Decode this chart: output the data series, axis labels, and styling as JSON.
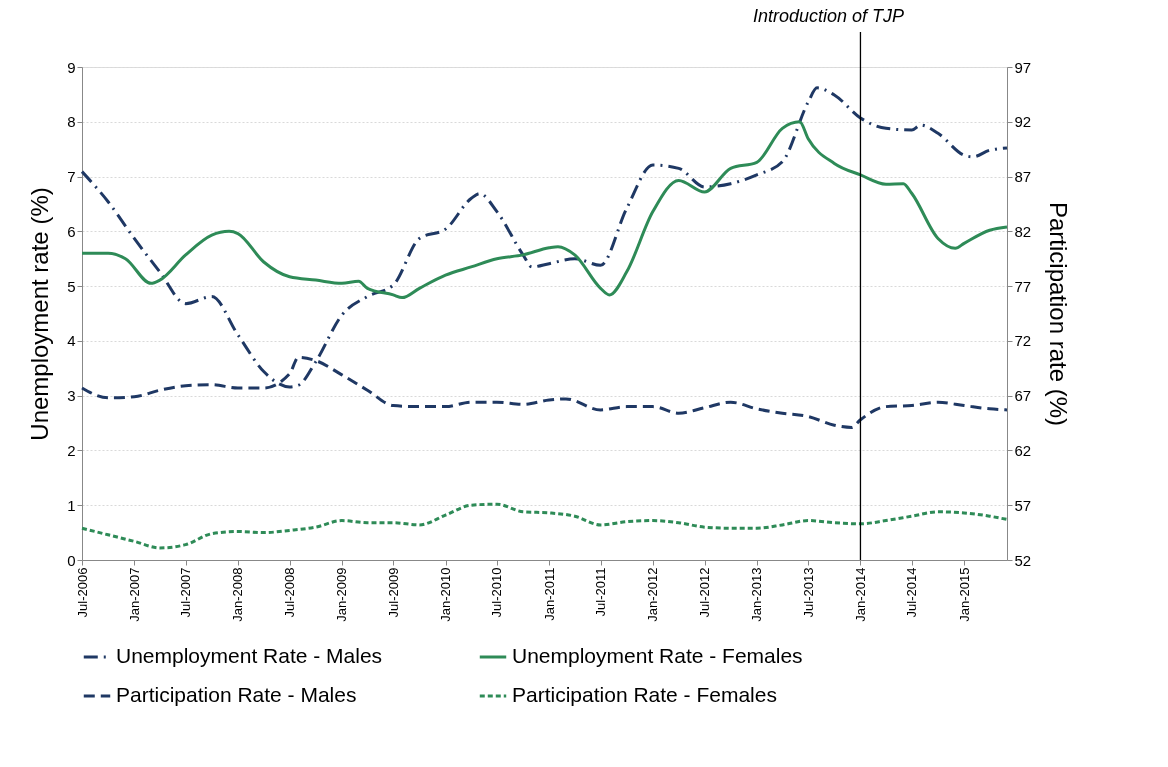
{
  "chart_data": {
    "type": "line",
    "ylabel": "Unemployment rate (%)",
    "y2label": "Participation rate (%)",
    "xlim": [
      "2006-07",
      "2015-06"
    ],
    "xticks": [
      {
        "value": "2006-07",
        "label": "Jul-2006"
      },
      {
        "value": "2007-01",
        "label": "Jan-2007"
      },
      {
        "value": "2007-07",
        "label": "Jul-2007"
      },
      {
        "value": "2008-01",
        "label": "Jan-2008"
      },
      {
        "value": "2008-07",
        "label": "Jul-2008"
      },
      {
        "value": "2009-01",
        "label": "Jan-2009"
      },
      {
        "value": "2009-07",
        "label": "Jul-2009"
      },
      {
        "value": "2010-01",
        "label": "Jan-2010"
      },
      {
        "value": "2010-07",
        "label": "Jul-2010"
      },
      {
        "value": "2011-01",
        "label": "Jan-2011"
      },
      {
        "value": "2011-07",
        "label": "Jul-2011"
      },
      {
        "value": "2012-01",
        "label": "Jan-2012"
      },
      {
        "value": "2012-07",
        "label": "Jul-2012"
      },
      {
        "value": "2013-01",
        "label": "Jan-2013"
      },
      {
        "value": "2013-07",
        "label": "Jul-2013"
      },
      {
        "value": "2014-01",
        "label": "Jan-2014"
      },
      {
        "value": "2014-07",
        "label": "Jul-2014"
      },
      {
        "value": "2015-01",
        "label": "Jan-2015"
      }
    ],
    "ylim": [
      0,
      9
    ],
    "yticks": [
      0,
      1,
      2,
      3,
      4,
      5,
      6,
      7,
      8,
      9
    ],
    "y2lim": [
      52,
      97
    ],
    "y2ticks": [
      52,
      57,
      62,
      67,
      72,
      77,
      82,
      87,
      92,
      97
    ],
    "grid": "y",
    "legend": "bottom",
    "marker": "none",
    "ref_lines": [
      {
        "axis": "x",
        "value": "2014-01",
        "label": "Introduction of TJP",
        "color": "#000000"
      }
    ],
    "series": [
      {
        "name": "Unemployment Rate - Males",
        "color": "#1f3864",
        "line_style": "dashdot",
        "x": [
          "2006-07",
          "2006-10",
          "2007-01",
          "2007-04",
          "2007-07",
          "2007-10",
          "2008-01",
          "2008-04",
          "2008-07",
          "2008-08",
          "2008-10",
          "2009-01",
          "2009-04",
          "2009-07",
          "2009-10",
          "2010-01",
          "2010-04",
          "2010-05",
          "2010-07",
          "2010-10",
          "2010-11",
          "2011-01",
          "2011-04",
          "2011-07",
          "2011-10",
          "2012-01",
          "2012-04",
          "2012-07",
          "2012-10",
          "2013-01",
          "2013-04",
          "2013-07",
          "2013-08",
          "2013-10",
          "2014-01",
          "2014-04",
          "2014-07",
          "2014-08",
          "2014-10",
          "2015-01",
          "2015-02",
          "2015-04",
          "2015-06"
        ],
        "values": [
          7.09,
          6.54,
          5.87,
          5.26,
          4.68,
          4.81,
          4.11,
          3.44,
          3.16,
          3.19,
          3.62,
          4.47,
          4.81,
          5.02,
          5.87,
          6.04,
          6.6,
          6.69,
          6.36,
          5.57,
          5.35,
          5.41,
          5.5,
          5.38,
          6.42,
          7.21,
          7.15,
          6.81,
          6.87,
          7.03,
          7.27,
          8.36,
          8.62,
          8.49,
          8.07,
          7.88,
          7.85,
          7.94,
          7.79,
          7.39,
          7.36,
          7.48,
          7.52
        ]
      },
      {
        "name": "Unemployment Rate - Females",
        "color": "#2e8b57",
        "line_style": "solid",
        "x": [
          "2006-07",
          "2006-10",
          "2006-12",
          "2007-03",
          "2007-04",
          "2007-07",
          "2007-10",
          "2007-12",
          "2008-01",
          "2008-04",
          "2008-07",
          "2008-10",
          "2009-01",
          "2009-03",
          "2009-04",
          "2009-07",
          "2009-08",
          "2009-10",
          "2010-01",
          "2010-04",
          "2010-07",
          "2010-10",
          "2011-01",
          "2011-02",
          "2011-04",
          "2011-07",
          "2011-08",
          "2011-10",
          "2012-01",
          "2012-04",
          "2012-07",
          "2012-10",
          "2013-01",
          "2013-04",
          "2013-06",
          "2013-07",
          "2013-10",
          "2014-01",
          "2014-04",
          "2014-06",
          "2014-07",
          "2014-10",
          "2014-12",
          "2015-01",
          "2015-04",
          "2015-06"
        ],
        "values": [
          5.6,
          5.6,
          5.5,
          5.05,
          5.11,
          5.57,
          5.93,
          6.0,
          5.96,
          5.44,
          5.17,
          5.11,
          5.05,
          5.09,
          4.96,
          4.84,
          4.79,
          4.96,
          5.2,
          5.35,
          5.5,
          5.57,
          5.7,
          5.72,
          5.57,
          4.96,
          4.84,
          5.26,
          6.36,
          6.93,
          6.72,
          7.15,
          7.26,
          7.88,
          8.0,
          7.69,
          7.24,
          7.03,
          6.86,
          6.87,
          6.69,
          5.87,
          5.69,
          5.78,
          6.02,
          6.08
        ]
      },
      {
        "name": "Participation Rate - Males",
        "color": "#1f3864",
        "line_style": "dashed",
        "axis": "y2",
        "x": [
          "2006-07",
          "2006-10",
          "2007-01",
          "2007-04",
          "2007-07",
          "2007-10",
          "2008-01",
          "2008-04",
          "2008-07",
          "2008-08",
          "2008-10",
          "2009-01",
          "2009-04",
          "2009-07",
          "2009-10",
          "2010-01",
          "2010-04",
          "2010-07",
          "2010-10",
          "2011-01",
          "2011-03",
          "2011-07",
          "2011-10",
          "2012-01",
          "2012-04",
          "2012-07",
          "2012-10",
          "2013-01",
          "2013-04",
          "2013-07",
          "2013-10",
          "2013-12",
          "2014-01",
          "2014-04",
          "2014-07",
          "2014-10",
          "2015-01",
          "2015-04",
          "2015-06"
        ],
        "values": [
          67.7,
          66.8,
          66.9,
          67.5,
          67.9,
          68.0,
          67.7,
          67.7,
          69.0,
          70.5,
          70.2,
          68.9,
          67.5,
          66.1,
          66.0,
          66.0,
          66.4,
          66.4,
          66.2,
          66.6,
          66.7,
          65.7,
          66.0,
          66.0,
          65.4,
          65.9,
          66.4,
          65.8,
          65.4,
          65.1,
          64.3,
          64.1,
          64.8,
          66.0,
          66.1,
          66.4,
          66.1,
          65.8,
          65.7
        ]
      },
      {
        "name": "Participation Rate - Females",
        "color": "#2e8b57",
        "line_style": "dotted",
        "axis": "y2",
        "x": [
          "2006-07",
          "2006-10",
          "2007-01",
          "2007-04",
          "2007-07",
          "2007-10",
          "2008-01",
          "2008-04",
          "2008-07",
          "2008-10",
          "2009-01",
          "2009-04",
          "2009-07",
          "2009-10",
          "2010-01",
          "2010-04",
          "2010-07",
          "2010-10",
          "2011-01",
          "2011-04",
          "2011-07",
          "2011-10",
          "2012-01",
          "2012-04",
          "2012-07",
          "2012-10",
          "2013-01",
          "2013-04",
          "2013-07",
          "2013-10",
          "2014-01",
          "2014-04",
          "2014-07",
          "2014-10",
          "2015-01",
          "2015-04",
          "2015-06"
        ],
        "values": [
          54.9,
          54.3,
          53.7,
          53.1,
          53.4,
          54.4,
          54.6,
          54.5,
          54.7,
          55.0,
          55.6,
          55.4,
          55.4,
          55.2,
          56.1,
          57.0,
          57.1,
          56.4,
          56.3,
          56.0,
          55.2,
          55.5,
          55.6,
          55.4,
          55.0,
          54.9,
          54.9,
          55.2,
          55.6,
          55.4,
          55.3,
          55.6,
          56.0,
          56.4,
          56.3,
          56.0,
          55.7
        ]
      }
    ]
  }
}
